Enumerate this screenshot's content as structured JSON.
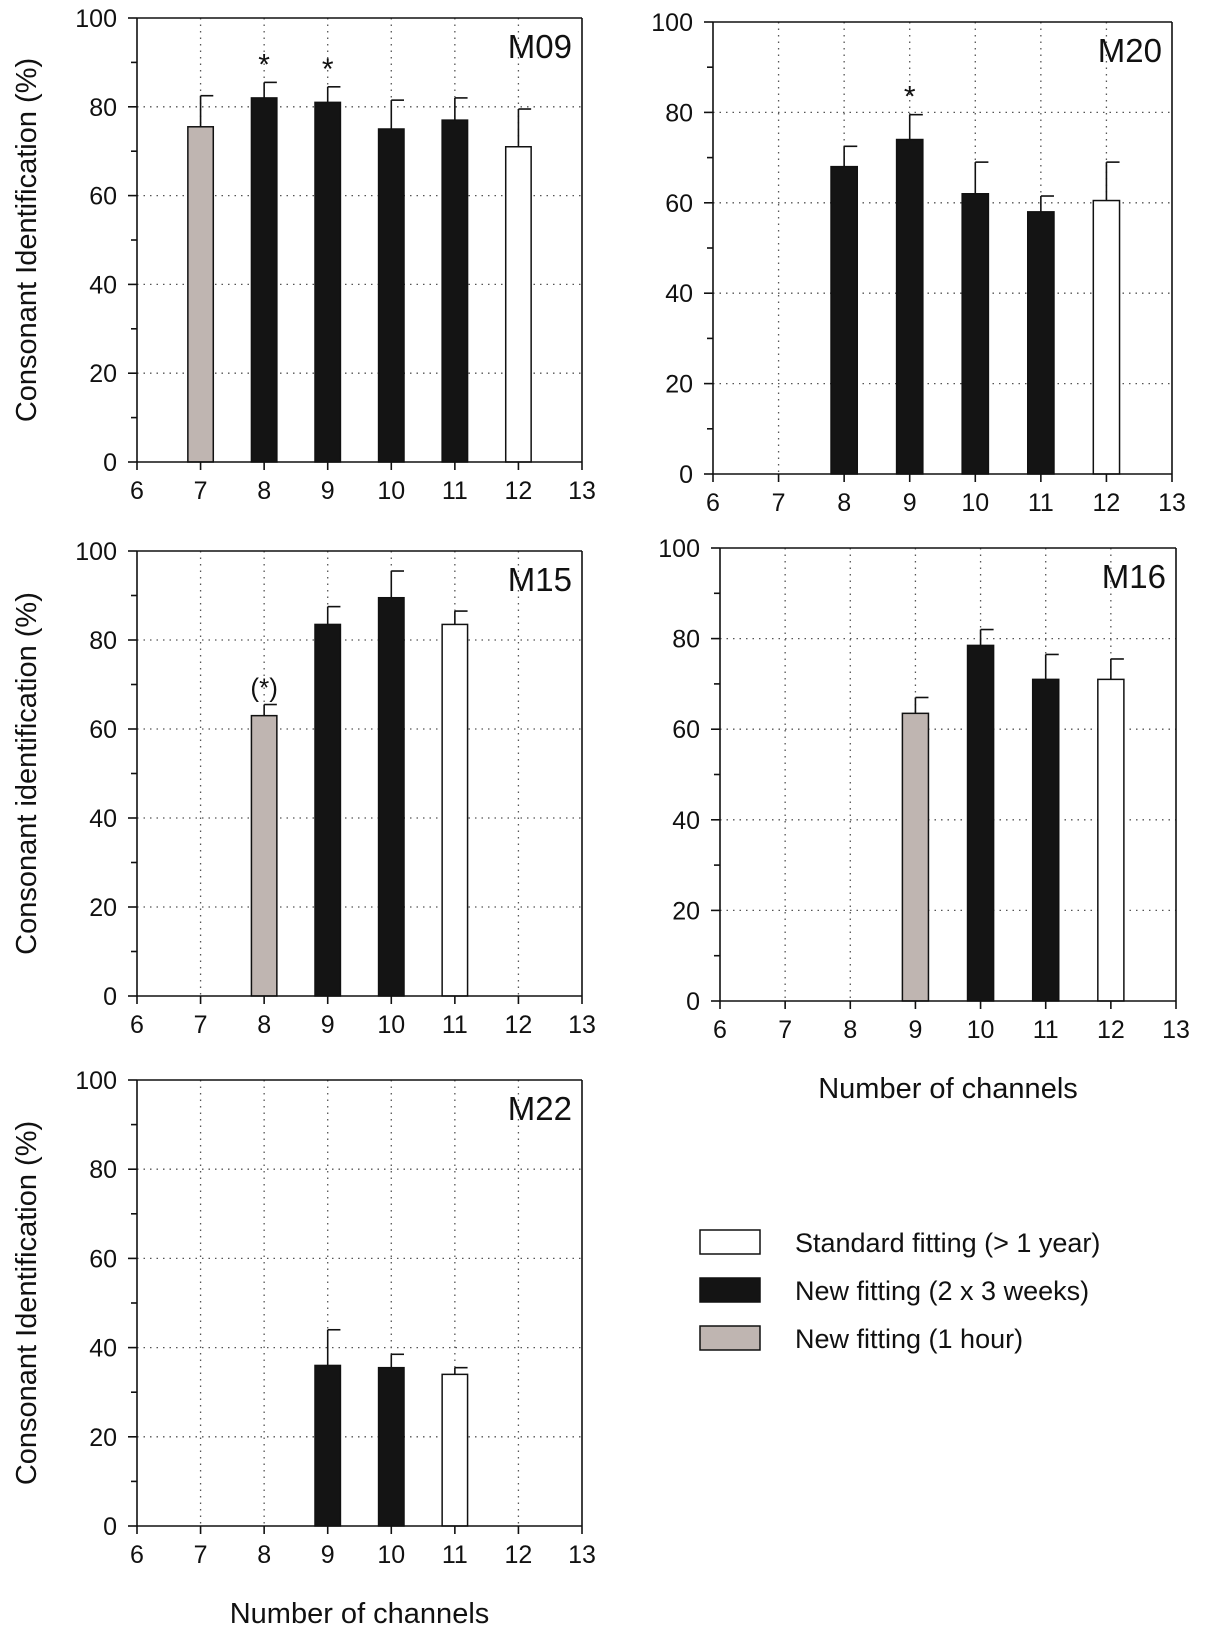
{
  "colors": {
    "standard": "#ffffff",
    "new_weeks": "#141414",
    "new_hour": "#bfb5b1",
    "axis": "#111111",
    "grid": "#555555"
  },
  "legend": {
    "placement": "right-bottom",
    "items": [
      {
        "label": "Standard fitting (> 1 year)",
        "series": "standard"
      },
      {
        "label": "New fitting (2 x 3 weeks)",
        "series": "new_weeks"
      },
      {
        "label": "New fitting (1 hour)",
        "series": "new_hour"
      }
    ]
  },
  "chart_data": [
    {
      "type": "bar",
      "panel": "M09",
      "xlabel": "",
      "ylabel": "Consonant Identification (%)",
      "xlim": [
        6,
        13
      ],
      "ylim": [
        0,
        100
      ],
      "grid": true,
      "xticks": [
        "6",
        "7",
        "8",
        "9",
        "10",
        "11",
        "12",
        "13"
      ],
      "yticks": [
        "0",
        "20",
        "40",
        "60",
        "80",
        "100"
      ],
      "bars": [
        {
          "x": 7,
          "value": 75.5,
          "error": 7,
          "series": "new_hour",
          "mark": ""
        },
        {
          "x": 8,
          "value": 82,
          "error": 3.5,
          "series": "new_weeks",
          "mark": "*"
        },
        {
          "x": 9,
          "value": 81,
          "error": 3.5,
          "series": "new_weeks",
          "mark": "*"
        },
        {
          "x": 10,
          "value": 75,
          "error": 6.5,
          "series": "new_weeks",
          "mark": ""
        },
        {
          "x": 11,
          "value": 77,
          "error": 5,
          "series": "new_weeks",
          "mark": ""
        },
        {
          "x": 12,
          "value": 71,
          "error": 8.5,
          "series": "standard",
          "mark": ""
        }
      ]
    },
    {
      "type": "bar",
      "panel": "M20",
      "xlabel": "",
      "ylabel": "",
      "xlim": [
        6,
        13
      ],
      "ylim": [
        0,
        100
      ],
      "grid": true,
      "xticks": [
        "6",
        "7",
        "8",
        "9",
        "10",
        "11",
        "12",
        "13"
      ],
      "yticks": [
        "0",
        "20",
        "40",
        "60",
        "80",
        "100"
      ],
      "bars": [
        {
          "x": 8,
          "value": 68,
          "error": 4.5,
          "series": "new_weeks",
          "mark": ""
        },
        {
          "x": 9,
          "value": 74,
          "error": 5.5,
          "series": "new_weeks",
          "mark": "*"
        },
        {
          "x": 10,
          "value": 62,
          "error": 7,
          "series": "new_weeks",
          "mark": ""
        },
        {
          "x": 11,
          "value": 58,
          "error": 3.5,
          "series": "new_weeks",
          "mark": ""
        },
        {
          "x": 12,
          "value": 60.5,
          "error": 8.5,
          "series": "standard",
          "mark": ""
        }
      ]
    },
    {
      "type": "bar",
      "panel": "M15",
      "xlabel": "",
      "ylabel": "Consonant identification (%)",
      "xlim": [
        6,
        13
      ],
      "ylim": [
        0,
        100
      ],
      "grid": true,
      "xticks": [
        "6",
        "7",
        "8",
        "9",
        "10",
        "11",
        "12",
        "13"
      ],
      "yticks": [
        "0",
        "20",
        "40",
        "60",
        "80",
        "100"
      ],
      "bars": [
        {
          "x": 8,
          "value": 63,
          "error": 2.5,
          "series": "new_hour",
          "mark": "(*)"
        },
        {
          "x": 9,
          "value": 83.5,
          "error": 4,
          "series": "new_weeks",
          "mark": ""
        },
        {
          "x": 10,
          "value": 89.5,
          "error": 6,
          "series": "new_weeks",
          "mark": ""
        },
        {
          "x": 11,
          "value": 83.5,
          "error": 3,
          "series": "standard",
          "mark": ""
        }
      ]
    },
    {
      "type": "bar",
      "panel": "M16",
      "xlabel": "Number of channels",
      "ylabel": "",
      "xlim": [
        6,
        13
      ],
      "ylim": [
        0,
        100
      ],
      "grid": true,
      "xticks": [
        "6",
        "7",
        "8",
        "9",
        "10",
        "11",
        "12",
        "13"
      ],
      "yticks": [
        "0",
        "20",
        "40",
        "60",
        "80",
        "100"
      ],
      "bars": [
        {
          "x": 9,
          "value": 63.5,
          "error": 3.5,
          "series": "new_hour",
          "mark": ""
        },
        {
          "x": 10,
          "value": 78.5,
          "error": 3.5,
          "series": "new_weeks",
          "mark": ""
        },
        {
          "x": 11,
          "value": 71,
          "error": 5.5,
          "series": "new_weeks",
          "mark": ""
        },
        {
          "x": 12,
          "value": 71,
          "error": 4.5,
          "series": "standard",
          "mark": ""
        }
      ]
    },
    {
      "type": "bar",
      "panel": "M22",
      "xlabel": "Number of channels",
      "ylabel": "Consonant Identification (%)",
      "xlim": [
        6,
        13
      ],
      "ylim": [
        0,
        100
      ],
      "grid": true,
      "xticks": [
        "6",
        "7",
        "8",
        "9",
        "10",
        "11",
        "12",
        "13"
      ],
      "yticks": [
        "0",
        "20",
        "40",
        "60",
        "80",
        "100"
      ],
      "bars": [
        {
          "x": 9,
          "value": 36,
          "error": 8,
          "series": "new_weeks",
          "mark": ""
        },
        {
          "x": 10,
          "value": 35.5,
          "error": 3,
          "series": "new_weeks",
          "mark": ""
        },
        {
          "x": 11,
          "value": 34,
          "error": 1.5,
          "series": "standard",
          "mark": ""
        }
      ]
    }
  ]
}
